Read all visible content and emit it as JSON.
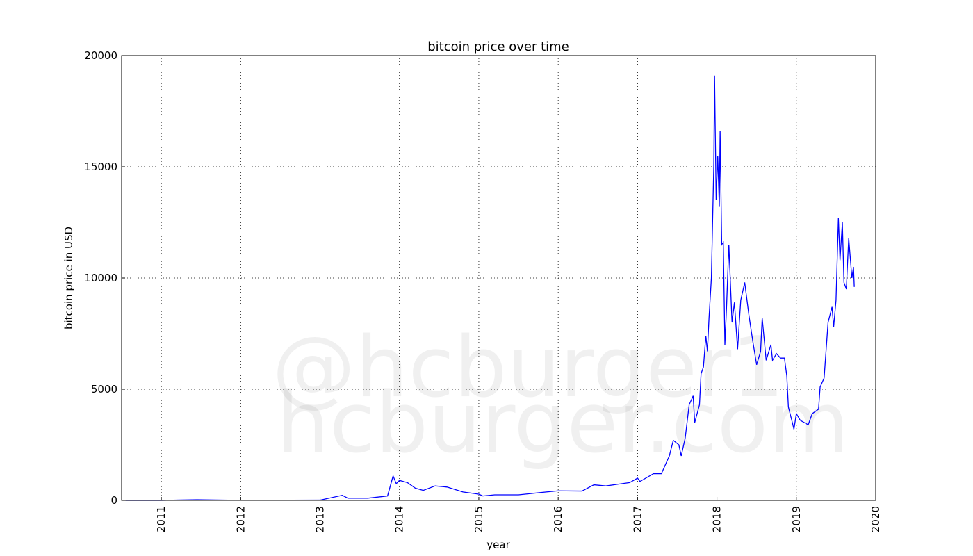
{
  "chart_data": {
    "type": "line",
    "title": "bitcoin price over time",
    "xlabel": "year",
    "ylabel": "bitcoin price in USD",
    "watermark": [
      "@hcburger1",
      "hcburger.com"
    ],
    "color": "#0000ff",
    "grid": true,
    "xlim": [
      2010.5,
      2020
    ],
    "xticks": [
      2011,
      2012,
      2013,
      2014,
      2015,
      2016,
      2017,
      2018,
      2019,
      2020
    ],
    "ylim": [
      0,
      20000
    ],
    "yticks": [
      0,
      5000,
      10000,
      15000,
      20000
    ],
    "x": [
      2010.55,
      2011.0,
      2011.45,
      2012.0,
      2013.0,
      2013.28,
      2013.35,
      2013.6,
      2013.85,
      2013.92,
      2013.96,
      2014.0,
      2014.1,
      2014.2,
      2014.3,
      2014.45,
      2014.6,
      2014.8,
      2015.0,
      2015.05,
      2015.2,
      2015.5,
      2015.85,
      2016.0,
      2016.3,
      2016.45,
      2016.6,
      2016.9,
      2017.0,
      2017.03,
      2017.2,
      2017.3,
      2017.4,
      2017.45,
      2017.52,
      2017.55,
      2017.6,
      2017.65,
      2017.7,
      2017.72,
      2017.78,
      2017.8,
      2017.83,
      2017.86,
      2017.88,
      2017.9,
      2017.93,
      2017.96,
      2017.97,
      2017.99,
      2018.01,
      2018.03,
      2018.04,
      2018.06,
      2018.08,
      2018.1,
      2018.12,
      2018.15,
      2018.19,
      2018.22,
      2018.26,
      2018.3,
      2018.35,
      2018.4,
      2018.45,
      2018.5,
      2018.55,
      2018.57,
      2018.62,
      2018.68,
      2018.7,
      2018.75,
      2018.8,
      2018.85,
      2018.88,
      2018.9,
      2018.95,
      2018.97,
      2019.0,
      2019.05,
      2019.15,
      2019.2,
      2019.28,
      2019.3,
      2019.35,
      2019.4,
      2019.45,
      2019.47,
      2019.5,
      2019.53,
      2019.55,
      2019.58,
      2019.6,
      2019.63,
      2019.66,
      2019.7,
      2019.72,
      2019.73
    ],
    "values": [
      0,
      1,
      30,
      5,
      13,
      230,
      100,
      100,
      200,
      1100,
      750,
      900,
      800,
      550,
      450,
      650,
      600,
      380,
      280,
      200,
      250,
      250,
      380,
      430,
      420,
      700,
      650,
      800,
      1000,
      850,
      1200,
      1200,
      2000,
      2700,
      2500,
      2000,
      2800,
      4300,
      4700,
      3500,
      4300,
      5700,
      6000,
      7400,
      6700,
      8200,
      10000,
      15000,
      19100,
      13500,
      15500,
      13200,
      16600,
      11500,
      11600,
      7000,
      8600,
      11500,
      8000,
      8900,
      6800,
      9000,
      9800,
      8400,
      7200,
      6100,
      6700,
      8200,
      6300,
      7000,
      6300,
      6600,
      6400,
      6400,
      5600,
      4200,
      3500,
      3200,
      3900,
      3600,
      3400,
      3900,
      4100,
      5100,
      5500,
      8000,
      8700,
      7800,
      9000,
      12700,
      10800,
      12500,
      9800,
      9500,
      11800,
      10000,
      10500,
      9600
    ]
  }
}
